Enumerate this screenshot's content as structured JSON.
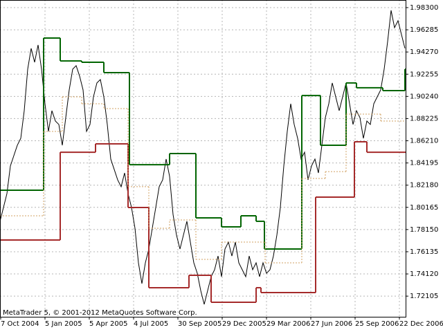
{
  "chart_data": {
    "type": "line",
    "footer": "MetaTrader 5, © 2001-2012 MetaQuotes Software Corp.",
    "xlim": [
      0,
      587
    ],
    "xticks": [
      {
        "value": 1,
        "label": "7 Oct 2004"
      },
      {
        "value": 65,
        "label": "5 Jan 2005"
      },
      {
        "value": 129,
        "label": "5 Apr 2005"
      },
      {
        "value": 193,
        "label": "4 Jul 2005"
      },
      {
        "value": 257,
        "label": "30 Sep 2005"
      },
      {
        "value": 321,
        "label": "29 Dec 2005"
      },
      {
        "value": 385,
        "label": "29 Mar 2006"
      },
      {
        "value": 449,
        "label": "27 Jun 2006"
      },
      {
        "value": 513,
        "label": "25 Sep 2006"
      },
      {
        "value": 577,
        "label": "22 Dec 2006"
      }
    ],
    "ylim": [
      1.7023,
      1.9899
    ],
    "yticks": [
      {
        "value": 1.983,
        "label": "1.98300"
      },
      {
        "value": 1.96285,
        "label": "1.96285"
      },
      {
        "value": 1.9427,
        "label": "1.94270"
      },
      {
        "value": 1.92255,
        "label": "1.92255"
      },
      {
        "value": 1.9024,
        "label": "1.90240"
      },
      {
        "value": 1.88225,
        "label": "1.88225"
      },
      {
        "value": 1.8621,
        "label": "1.86210"
      },
      {
        "value": 1.84195,
        "label": "1.84195"
      },
      {
        "value": 1.8218,
        "label": "1.82180"
      },
      {
        "value": 1.80165,
        "label": "1.80165"
      },
      {
        "value": 1.7815,
        "label": "1.78150"
      },
      {
        "value": 1.76135,
        "label": "1.76135"
      },
      {
        "value": 1.7412,
        "label": "1.74120"
      },
      {
        "value": 1.72105,
        "label": "1.72105"
      }
    ],
    "grid": true,
    "series": [
      {
        "color": "#000000",
        "step": false,
        "x": [
          0,
          5,
          10,
          15,
          20,
          25,
          30,
          35,
          40,
          45,
          50,
          55,
          60,
          65,
          70,
          75,
          80,
          85,
          90,
          95,
          100,
          105,
          110,
          115,
          120,
          125,
          130,
          135,
          140,
          145,
          150,
          155,
          160,
          165,
          170,
          175,
          180,
          185,
          190,
          195,
          200,
          205,
          210,
          215,
          220,
          225,
          230,
          235,
          240,
          245,
          250,
          255,
          260,
          265,
          270,
          275,
          280,
          285,
          290,
          295,
          300,
          305,
          310,
          315,
          320,
          325,
          330,
          335,
          340,
          345,
          350,
          355,
          360,
          365,
          370,
          375,
          380,
          385,
          390,
          395,
          400,
          405,
          410,
          415,
          420,
          425,
          430,
          435,
          440,
          445,
          450,
          455,
          460,
          465,
          470,
          475,
          480,
          485,
          490,
          495,
          500,
          505,
          510,
          515,
          520,
          525,
          530,
          535,
          540,
          545,
          550,
          555,
          560,
          565,
          570,
          575,
          580,
          585
        ],
        "values": [
          1.789,
          1.8015,
          1.8141,
          1.8392,
          1.8486,
          1.858,
          1.8643,
          1.8894,
          1.9271,
          1.946,
          1.9334,
          1.9491,
          1.9271,
          1.8957,
          1.8706,
          1.8894,
          1.88,
          1.8769,
          1.858,
          1.8831,
          1.9083,
          1.9271,
          1.9303,
          1.9208,
          1.9083,
          1.8706,
          1.8769,
          1.902,
          1.9146,
          1.9177,
          1.902,
          1.8769,
          1.8455,
          1.8361,
          1.8266,
          1.8204,
          1.8329,
          1.8141,
          1.8015,
          1.7827,
          1.7513,
          1.7324,
          1.7513,
          1.7638,
          1.7827,
          1.8015,
          1.8204,
          1.8266,
          1.8455,
          1.8298,
          1.7952,
          1.7765,
          1.7638,
          1.7765,
          1.789,
          1.7701,
          1.7513,
          1.7418,
          1.7261,
          1.7136,
          1.7261,
          1.7387,
          1.745,
          1.7575,
          1.7387,
          1.7638,
          1.7701,
          1.7575,
          1.7701,
          1.7513,
          1.745,
          1.7387,
          1.7575,
          1.745,
          1.7513,
          1.7387,
          1.7513,
          1.7418,
          1.745,
          1.7575,
          1.7765,
          1.8015,
          1.8392,
          1.8706,
          1.8957,
          1.8769,
          1.8643,
          1.8455,
          1.8517,
          1.8266,
          1.8392,
          1.8455,
          1.8329,
          1.858,
          1.8831,
          1.8957,
          1.9146,
          1.902,
          1.8894,
          1.902,
          1.9146,
          1.8957,
          1.8769,
          1.8894,
          1.8831,
          1.8643,
          1.88,
          1.8769,
          1.8957,
          1.902,
          1.9083,
          1.9271,
          1.9522,
          1.9805,
          1.9648,
          1.9711,
          1.9585,
          1.946
        ]
      },
      {
        "color": "#006400",
        "step": true,
        "dash": false,
        "x": [
          0,
          63,
          87,
          118,
          150,
          187,
          245,
          283,
          320,
          348,
          370,
          382,
          436,
          463,
          500,
          515,
          553,
          585
        ],
        "values": [
          1.8172,
          1.9554,
          1.9346,
          1.9334,
          1.924,
          1.8404,
          1.8505,
          1.7921,
          1.7839,
          1.794,
          1.789,
          1.7638,
          1.9032,
          1.858,
          1.9146,
          1.9102,
          1.9076,
          1.9271
        ]
      },
      {
        "color": "#a52a2a",
        "step": true,
        "dash": false,
        "x": [
          0,
          87,
          138,
          185,
          215,
          273,
          305,
          370,
          377,
          456,
          512,
          530
        ],
        "values": [
          1.772,
          1.8517,
          1.8593,
          1.8015,
          1.7287,
          1.74,
          1.7155,
          1.7287,
          1.7243,
          1.8109,
          1.8612,
          1.8517
        ]
      },
      {
        "color": "#d2a060",
        "step": true,
        "dash": true,
        "x": [
          0,
          63,
          90,
          118,
          150,
          185,
          215,
          245,
          283,
          320,
          383,
          436,
          470,
          500,
          550
        ],
        "values": [
          1.794,
          1.8706,
          1.902,
          1.8957,
          1.8913,
          1.8204,
          1.7827,
          1.7902,
          1.7544,
          1.7701,
          1.7513,
          1.8279,
          1.8341,
          1.8863,
          1.88
        ]
      }
    ]
  }
}
